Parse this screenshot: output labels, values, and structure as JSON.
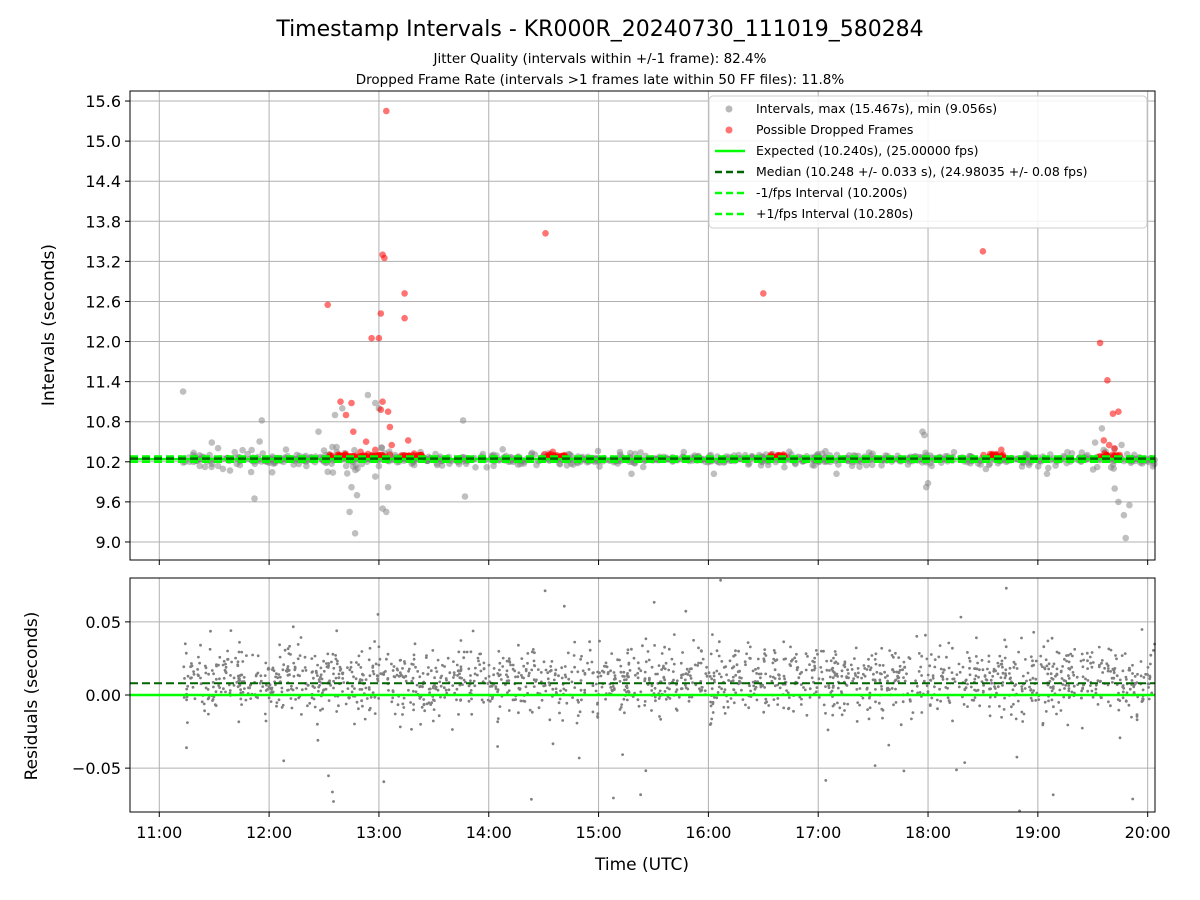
{
  "chart_data": [
    {
      "type": "scatter",
      "title": "Timestamp Intervals - KR000R_20240730_111019_580284",
      "subtitles": [
        "Jitter Quality (intervals within +/-1 frame): 82.4%",
        "Dropped Frame Rate (intervals >1 frames late within 50 FF files): 11.8%"
      ],
      "xlabel": "",
      "ylabel": "Intervals (seconds)",
      "xlim": [
        "10:44",
        "20:04"
      ],
      "ylim": [
        8.73,
        15.75
      ],
      "yticks": [
        9.0,
        9.6,
        10.2,
        10.8,
        11.4,
        12.0,
        12.6,
        13.2,
        13.8,
        14.4,
        15.0,
        15.6
      ],
      "ytick_labels": [
        "9.0",
        "9.6",
        "10.2",
        "10.8",
        "11.4",
        "12.0",
        "12.6",
        "13.2",
        "13.8",
        "14.4",
        "15.0",
        "15.6"
      ],
      "grid": true,
      "legend_position": "top-right",
      "legend": [
        "Intervals, max (15.467s), min (9.056s)",
        "Possible Dropped Frames",
        "Expected (10.240s), (25.00000 fps)",
        "Median (10.248 +/- 0.033 s), (24.98035 +/- 0.08 fps)",
        "-1/fps Interval (10.200s)",
        "+1/fps Interval (10.280s)"
      ],
      "colors": {
        "intervals": "#808080",
        "dropped": "#ff0000",
        "expected": "#00ff00",
        "median": "#006400",
        "fps_interval": "#00ff00"
      },
      "reference_lines": {
        "expected": 10.24,
        "median": 10.248,
        "minus_fps": 10.2,
        "plus_fps": 10.28
      },
      "series": [
        {
          "name": "Intervals, max (15.467s), min (9.056s)",
          "points": [
            [
              "11:13",
              11.25
            ],
            [
              "11:52",
              9.65
            ],
            [
              "11:56",
              10.82
            ],
            [
              "12:27",
              10.65
            ],
            [
              "12:32",
              10.05
            ],
            [
              "12:36",
              10.9
            ],
            [
              "12:40",
              11.0
            ],
            [
              "12:44",
              9.45
            ],
            [
              "12:45",
              9.82
            ],
            [
              "12:47",
              9.13
            ],
            [
              "12:48",
              9.7
            ],
            [
              "12:54",
              11.2
            ],
            [
              "12:58",
              11.08
            ],
            [
              "13:00",
              11.0
            ],
            [
              "13:02",
              9.5
            ],
            [
              "13:04",
              9.45
            ],
            [
              "13:05",
              9.82
            ],
            [
              "13:46",
              10.82
            ],
            [
              "13:47",
              9.68
            ],
            [
              "19:35",
              10.7
            ],
            [
              "19:42",
              9.8
            ],
            [
              "19:44",
              9.6
            ],
            [
              "19:47",
              9.4
            ],
            [
              "19:48",
              9.06
            ],
            [
              "19:50",
              9.55
            ],
            [
              "17:57",
              10.65
            ],
            [
              "17:58",
              10.6
            ],
            [
              "17:59",
              9.82
            ],
            [
              "18:00",
              9.88
            ],
            [
              "16:03",
              10.02
            ],
            [
              "15:18",
              10.02
            ],
            [
              "17:10",
              10.02
            ],
            [
              "19:05",
              10.02
            ]
          ]
        },
        {
          "name": "Possible Dropped Frames",
          "points": [
            [
              "12:32",
              12.55
            ],
            [
              "12:39",
              11.1
            ],
            [
              "12:42",
              10.9
            ],
            [
              "12:45",
              11.08
            ],
            [
              "12:46",
              10.65
            ],
            [
              "12:50",
              10.35
            ],
            [
              "12:53",
              10.5
            ],
            [
              "12:58",
              10.38
            ],
            [
              "12:56",
              12.05
            ],
            [
              "13:00",
              12.05
            ],
            [
              "13:01",
              12.42
            ],
            [
              "13:02",
              13.3
            ],
            [
              "13:03",
              13.25
            ],
            [
              "13:04",
              15.45
            ],
            [
              "13:02",
              11.1
            ],
            [
              "13:01",
              10.98
            ],
            [
              "13:05",
              10.95
            ],
            [
              "13:06",
              10.72
            ],
            [
              "13:07",
              10.45
            ],
            [
              "13:14",
              12.72
            ],
            [
              "13:14",
              12.35
            ],
            [
              "13:16",
              10.52
            ],
            [
              "14:31",
              13.62
            ],
            [
              "14:35",
              10.35
            ],
            [
              "16:30",
              12.72
            ],
            [
              "16:38",
              10.3
            ],
            [
              "18:30",
              13.35
            ],
            [
              "18:35",
              10.3
            ],
            [
              "18:40",
              10.38
            ],
            [
              "19:34",
              11.98
            ],
            [
              "19:38",
              11.42
            ],
            [
              "19:41",
              10.92
            ],
            [
              "19:44",
              10.95
            ],
            [
              "19:36",
              10.52
            ],
            [
              "19:39",
              10.45
            ],
            [
              "19:42",
              10.4
            ]
          ]
        },
        {
          "name": "Expected (10.240s), (25.00000 fps)",
          "y": 10.24
        },
        {
          "name": "Median (10.248 +/- 0.033 s), (24.98035 +/- 0.08 fps)",
          "y": 10.248
        },
        {
          "name": "-1/fps Interval (10.200s)",
          "y": 10.2
        },
        {
          "name": "+1/fps Interval (10.280s)",
          "y": 10.28
        }
      ]
    },
    {
      "type": "scatter",
      "title": "",
      "xlabel": "Time (UTC)",
      "ylabel": "Residuals (seconds)",
      "xlim": [
        "10:44",
        "20:04"
      ],
      "ylim": [
        -0.08,
        0.08
      ],
      "xticks": [
        "11:00",
        "12:00",
        "13:00",
        "14:00",
        "15:00",
        "16:00",
        "17:00",
        "18:00",
        "19:00",
        "20:00"
      ],
      "yticks": [
        -0.05,
        0.0,
        0.05
      ],
      "ytick_labels": [
        "−0.05",
        "0.00",
        "0.05"
      ],
      "grid": true,
      "colors": {
        "points": "#808080",
        "expected": "#00ff00",
        "median": "#006400"
      },
      "reference_lines": {
        "expected": 0.0,
        "median": 0.008
      },
      "series": [
        {
          "name": "",
          "distribution": {
            "start": "11:13",
            "end": "20:04",
            "count": 1800,
            "center": 0.01,
            "spread": 0.02
          }
        }
      ]
    }
  ]
}
